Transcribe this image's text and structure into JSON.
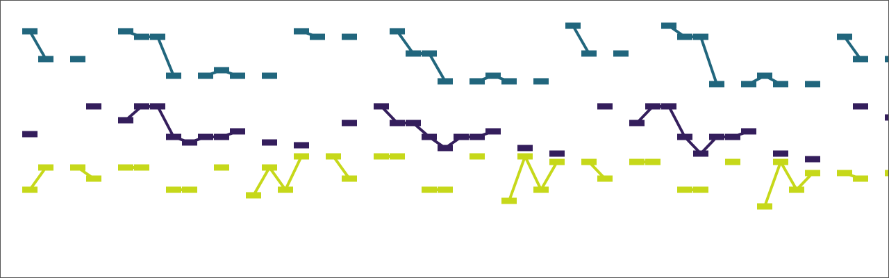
{
  "chart_data": {
    "type": "line",
    "title": "",
    "xlabel": "",
    "ylabel": "",
    "grid": false,
    "legend": "none",
    "axes_visible": false,
    "marker": "horizontal-bar",
    "x": [
      1,
      2,
      3,
      4,
      5,
      6,
      7,
      8,
      9,
      10,
      11,
      12,
      13,
      14,
      15,
      16,
      17,
      18,
      19,
      20,
      21,
      22,
      23,
      24,
      25,
      26,
      27,
      28,
      29,
      30,
      31,
      32,
      33,
      34,
      35,
      36,
      37,
      38,
      39,
      40,
      41,
      42,
      43,
      44,
      45,
      46,
      47,
      48,
      49,
      50,
      51,
      52,
      53,
      54,
      55
    ],
    "ylim": [
      0,
      1
    ],
    "series": [
      {
        "color": "#21667d",
        "values": [
          0.89,
          0.79,
          null,
          0.79,
          null,
          null,
          0.89,
          0.87,
          0.87,
          0.73,
          null,
          0.73,
          0.75,
          0.73,
          null,
          0.73,
          null,
          0.89,
          0.87,
          null,
          0.87,
          null,
          null,
          0.89,
          0.81,
          0.81,
          0.71,
          null,
          0.71,
          0.73,
          0.71,
          null,
          0.71,
          null,
          0.91,
          0.81,
          null,
          0.81,
          null,
          null,
          0.91,
          0.87,
          0.87,
          0.7,
          null,
          0.7,
          0.73,
          0.7,
          null,
          0.7,
          null,
          0.87,
          0.79,
          null,
          0.79
        ]
      },
      {
        "color": "#341e5c",
        "values": [
          0.52,
          null,
          null,
          null,
          0.62,
          null,
          0.57,
          0.62,
          0.62,
          0.51,
          0.49,
          0.51,
          0.51,
          0.53,
          null,
          0.49,
          null,
          0.48,
          null,
          null,
          0.56,
          null,
          0.62,
          0.56,
          0.56,
          0.51,
          0.47,
          0.51,
          0.51,
          0.53,
          null,
          0.47,
          null,
          0.45,
          null,
          null,
          0.62,
          null,
          0.56,
          0.62,
          0.62,
          0.51,
          0.45,
          0.51,
          0.51,
          0.53,
          null,
          0.45,
          null,
          0.43,
          null,
          null,
          0.62,
          null,
          0.58
        ]
      },
      {
        "color": "#c6d81a",
        "values": [
          0.32,
          0.4,
          null,
          0.4,
          0.36,
          null,
          0.4,
          0.4,
          null,
          0.32,
          0.32,
          null,
          0.4,
          null,
          0.3,
          0.4,
          0.32,
          0.44,
          null,
          0.44,
          0.36,
          null,
          0.44,
          0.44,
          null,
          0.32,
          0.32,
          null,
          0.44,
          null,
          0.28,
          0.44,
          0.32,
          0.42,
          null,
          0.42,
          0.36,
          null,
          0.42,
          0.42,
          null,
          0.32,
          0.32,
          null,
          0.42,
          null,
          0.26,
          0.42,
          0.32,
          0.38,
          null,
          0.38,
          0.36,
          null,
          0.38
        ]
      }
    ]
  }
}
